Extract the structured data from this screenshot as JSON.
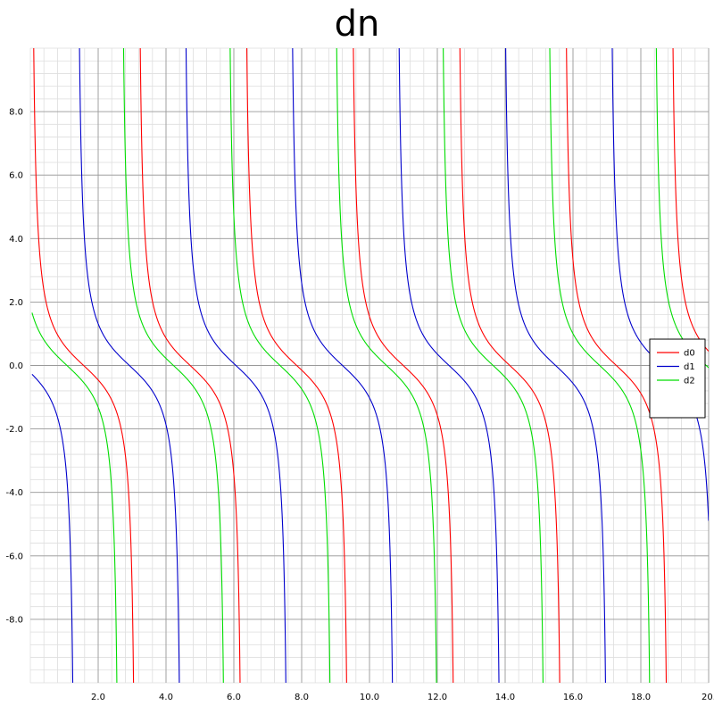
{
  "chart_data": {
    "type": "line",
    "title": "dn",
    "xlabel": "",
    "ylabel": "",
    "xlim": [
      0,
      20
    ],
    "ylim": [
      -10,
      10
    ],
    "grid": true,
    "legend_position": "right",
    "x_ticks": [
      {
        "value": 2,
        "label": "2.0"
      },
      {
        "value": 4,
        "label": "4.0"
      },
      {
        "value": 6,
        "label": "6.0"
      },
      {
        "value": 8,
        "label": "8.0"
      },
      {
        "value": 10,
        "label": "10.0"
      },
      {
        "value": 12,
        "label": "12.0"
      },
      {
        "value": 14,
        "label": "14.0"
      },
      {
        "value": 16,
        "label": "16.0"
      },
      {
        "value": 18,
        "label": "18.0"
      },
      {
        "value": 20,
        "label": "20."
      }
    ],
    "y_ticks": [
      {
        "value": 8,
        "label": "8.0"
      },
      {
        "value": 6,
        "label": "6.0"
      },
      {
        "value": 4,
        "label": "4.0"
      },
      {
        "value": 2,
        "label": "2.0"
      },
      {
        "value": 0,
        "label": "0.0"
      },
      {
        "value": -2,
        "label": "-2.0"
      },
      {
        "value": -4,
        "label": "-4.0"
      },
      {
        "value": -6,
        "label": "-6.0"
      },
      {
        "value": -8,
        "label": "-8.0"
      }
    ],
    "series": [
      {
        "name": "d0",
        "color": "#ff0000",
        "function": "cot(x)",
        "period": 3.14159,
        "x_start": 0.05,
        "x_end": 20
      },
      {
        "name": "d1",
        "color": "#0000cc",
        "function": "cot(x)",
        "period": 3.14159,
        "x_start": 0.05,
        "x_end": 20
      },
      {
        "name": "d2",
        "color": "#00dd00",
        "function": "cot(x)",
        "period": 3.14159,
        "x_start": 0.05,
        "x_end": 20
      }
    ]
  }
}
